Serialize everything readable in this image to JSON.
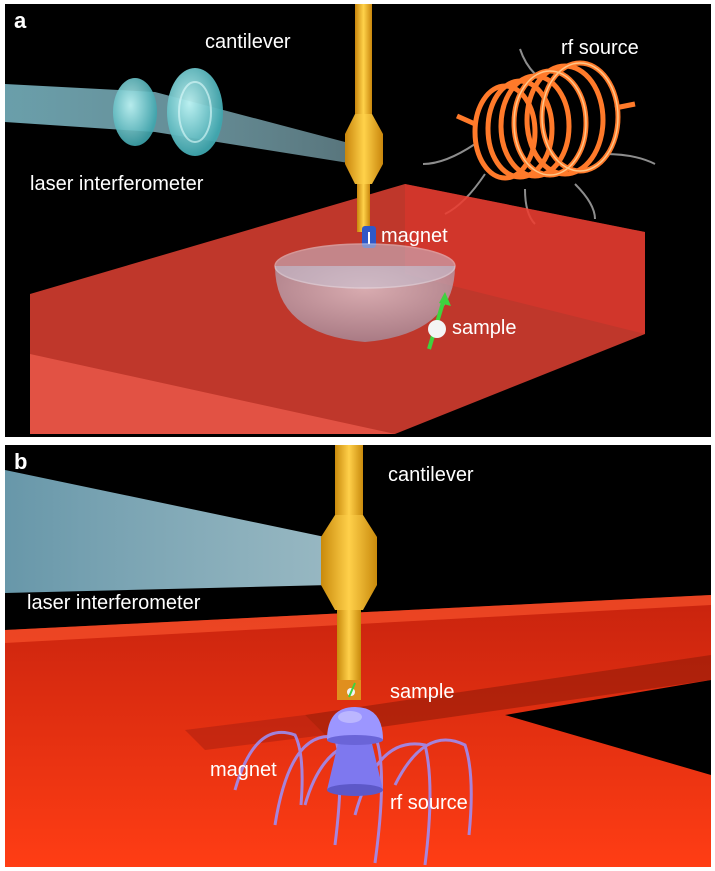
{
  "panels": [
    {
      "id": "a",
      "label": "a",
      "labels": {
        "cantilever": "cantilever",
        "rf_source": "rf source",
        "laser_interferometer": "laser interferometer",
        "magnet": "magnet",
        "sample": "sample"
      }
    },
    {
      "id": "b",
      "label": "b",
      "labels": {
        "cantilever": "cantilever",
        "laser_interferometer": "laser interferometer",
        "sample": "sample",
        "magnet": "magnet",
        "rf_source": "rf source"
      }
    }
  ],
  "colors": {
    "background": "#000000",
    "substrate": "#ff3b2f",
    "cantilever": "#f0b21c",
    "laser_beam": "#7fb4c4",
    "coil": "#ff7a2a",
    "magnet_a": "#2f58c8",
    "magnet_b": "#8c86ff",
    "spin": "#3fd23f"
  }
}
